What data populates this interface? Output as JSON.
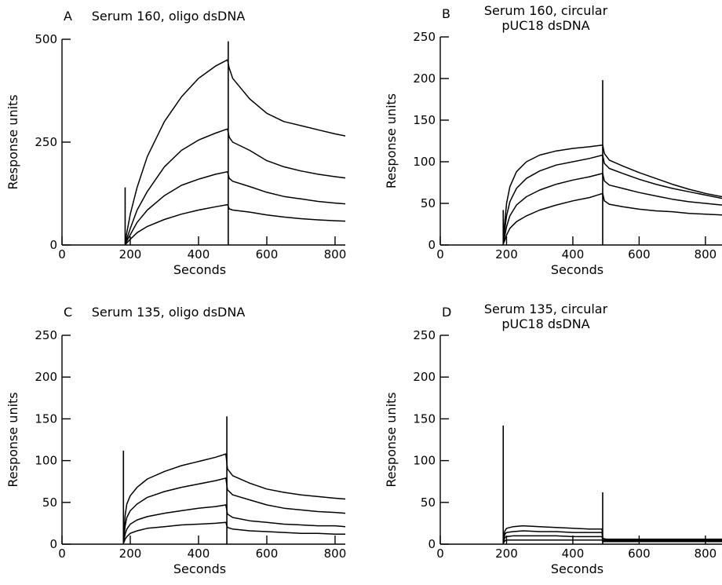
{
  "chart_data": [
    {
      "type": "line",
      "panel": "A",
      "title": [
        "Serum 160, oligo dsDNA"
      ],
      "xlabel": "Seconds",
      "ylabel": "Response units",
      "xlim": [
        0,
        830
      ],
      "ylim": [
        0,
        500
      ],
      "xticks": [
        0,
        200,
        400,
        600,
        800
      ],
      "yticks": [
        0,
        250,
        500
      ],
      "injection_start": 185,
      "injection_end": 487,
      "series": [
        {
          "x": [
            185,
            190,
            200,
            220,
            250,
            300,
            350,
            400,
            450,
            485,
            490,
            500,
            550,
            600,
            650,
            700,
            750,
            800,
            830
          ],
          "y": [
            5,
            30,
            75,
            140,
            215,
            300,
            360,
            405,
            435,
            450,
            430,
            405,
            355,
            320,
            300,
            290,
            280,
            270,
            265
          ]
        },
        {
          "x": [
            185,
            190,
            200,
            220,
            250,
            300,
            350,
            400,
            450,
            485,
            490,
            500,
            550,
            600,
            650,
            700,
            750,
            800,
            830
          ],
          "y": [
            3,
            15,
            40,
            85,
            130,
            190,
            230,
            255,
            272,
            282,
            262,
            250,
            230,
            205,
            190,
            180,
            172,
            166,
            163
          ]
        },
        {
          "x": [
            185,
            190,
            200,
            220,
            250,
            300,
            350,
            400,
            450,
            485,
            490,
            500,
            550,
            600,
            650,
            700,
            750,
            800,
            830
          ],
          "y": [
            2,
            10,
            25,
            55,
            85,
            120,
            145,
            160,
            172,
            178,
            162,
            155,
            142,
            128,
            118,
            112,
            106,
            102,
            100
          ]
        },
        {
          "x": [
            185,
            190,
            200,
            220,
            250,
            300,
            350,
            400,
            450,
            485,
            490,
            500,
            550,
            600,
            650,
            700,
            750,
            800,
            830
          ],
          "y": [
            1,
            5,
            14,
            30,
            45,
            62,
            75,
            85,
            93,
            98,
            88,
            85,
            80,
            73,
            68,
            64,
            61,
            59,
            58
          ]
        }
      ]
    },
    {
      "type": "line",
      "panel": "B",
      "title": [
        "Serum 160, circular",
        "pUC18 dsDNA"
      ],
      "xlabel": "Seconds",
      "ylabel": "Response units",
      "xlim": [
        0,
        850
      ],
      "ylim": [
        0,
        250
      ],
      "xticks": [
        0,
        200,
        400,
        600,
        800
      ],
      "yticks": [
        0,
        50,
        100,
        150,
        200,
        250
      ],
      "injection_start": 190,
      "injection_end": 490,
      "series": [
        {
          "x": [
            190,
            195,
            200,
            210,
            230,
            260,
            300,
            350,
            400,
            450,
            490,
            495,
            510,
            550,
            600,
            650,
            700,
            750,
            800,
            850
          ],
          "y": [
            5,
            30,
            50,
            70,
            88,
            100,
            108,
            113,
            116,
            118,
            120,
            110,
            102,
            95,
            87,
            80,
            73,
            67,
            62,
            58
          ]
        },
        {
          "x": [
            190,
            195,
            200,
            210,
            230,
            260,
            300,
            350,
            400,
            450,
            490,
            495,
            510,
            550,
            600,
            650,
            700,
            750,
            800,
            850
          ],
          "y": [
            3,
            20,
            35,
            52,
            68,
            80,
            89,
            96,
            100,
            104,
            108,
            98,
            92,
            86,
            79,
            73,
            68,
            64,
            60,
            56
          ]
        },
        {
          "x": [
            190,
            195,
            200,
            210,
            230,
            260,
            300,
            350,
            400,
            450,
            490,
            495,
            510,
            550,
            600,
            650,
            700,
            750,
            800,
            850
          ],
          "y": [
            2,
            12,
            22,
            35,
            48,
            58,
            66,
            73,
            78,
            82,
            86,
            77,
            72,
            68,
            63,
            59,
            55,
            52,
            50,
            48
          ]
        },
        {
          "x": [
            190,
            195,
            200,
            210,
            230,
            260,
            300,
            350,
            400,
            450,
            490,
            495,
            510,
            550,
            600,
            650,
            700,
            750,
            800,
            850
          ],
          "y": [
            1,
            6,
            12,
            20,
            28,
            35,
            42,
            48,
            53,
            57,
            62,
            53,
            49,
            46,
            43,
            41,
            40,
            38,
            37,
            36
          ]
        }
      ]
    },
    {
      "type": "line",
      "panel": "C",
      "title": [
        "Serum 135, oligo dsDNA"
      ],
      "xlabel": "Seconds",
      "ylabel": "Response units",
      "xlim": [
        0,
        830
      ],
      "ylim": [
        0,
        250
      ],
      "xticks": [
        0,
        200,
        400,
        600,
        800
      ],
      "yticks": [
        0,
        50,
        100,
        150,
        200,
        250
      ],
      "injection_start": 180,
      "injection_end": 483,
      "series": [
        {
          "x": [
            180,
            185,
            190,
            200,
            220,
            250,
            300,
            350,
            400,
            450,
            480,
            485,
            500,
            550,
            600,
            650,
            700,
            750,
            800,
            830
          ],
          "y": [
            5,
            35,
            48,
            58,
            68,
            78,
            87,
            94,
            99,
            104,
            108,
            90,
            82,
            73,
            66,
            62,
            59,
            57,
            55,
            54
          ]
        },
        {
          "x": [
            180,
            185,
            190,
            200,
            220,
            250,
            300,
            350,
            400,
            450,
            480,
            485,
            500,
            550,
            600,
            650,
            700,
            750,
            800,
            830
          ],
          "y": [
            3,
            22,
            32,
            40,
            48,
            56,
            63,
            68,
            72,
            76,
            79,
            65,
            59,
            53,
            47,
            43,
            41,
            39,
            38,
            37
          ]
        },
        {
          "x": [
            180,
            185,
            190,
            200,
            220,
            250,
            300,
            350,
            400,
            450,
            480,
            485,
            500,
            550,
            600,
            650,
            700,
            750,
            800,
            830
          ],
          "y": [
            2,
            12,
            18,
            24,
            29,
            33,
            37,
            40,
            43,
            45,
            47,
            36,
            32,
            28,
            26,
            24,
            23,
            22,
            22,
            21
          ]
        },
        {
          "x": [
            180,
            185,
            190,
            200,
            220,
            250,
            300,
            350,
            400,
            450,
            480,
            485,
            500,
            550,
            600,
            650,
            700,
            750,
            800,
            830
          ],
          "y": [
            1,
            6,
            9,
            13,
            16,
            19,
            21,
            23,
            24,
            25,
            26,
            20,
            18,
            16,
            15,
            14,
            13,
            13,
            12,
            12
          ]
        }
      ]
    },
    {
      "type": "line",
      "panel": "D",
      "title": [
        "Serum 135, circular",
        "pUC18 dsDNA"
      ],
      "xlabel": "Seconds",
      "ylabel": "Response units",
      "xlim": [
        0,
        850
      ],
      "ylim": [
        0,
        250
      ],
      "xticks": [
        0,
        200,
        400,
        600,
        800
      ],
      "yticks": [
        0,
        50,
        100,
        150,
        200,
        250
      ],
      "injection_start": 190,
      "injection_end": 490,
      "series": [
        {
          "x": [
            190,
            195,
            200,
            220,
            250,
            300,
            350,
            400,
            450,
            488,
            490,
            500,
            550,
            600,
            700,
            800,
            850
          ],
          "y": [
            5,
            16,
            19,
            21,
            22,
            21,
            20,
            19,
            18,
            18,
            7,
            6,
            6,
            6,
            6,
            6,
            6
          ]
        },
        {
          "x": [
            190,
            195,
            200,
            220,
            250,
            300,
            350,
            400,
            450,
            488,
            490,
            500,
            550,
            600,
            700,
            800,
            850
          ],
          "y": [
            3,
            12,
            14,
            15,
            16,
            15,
            15,
            14,
            14,
            14,
            6,
            5,
            5,
            5,
            5,
            5,
            5
          ]
        },
        {
          "x": [
            190,
            195,
            200,
            220,
            250,
            300,
            350,
            400,
            450,
            488,
            490,
            500,
            550,
            600,
            700,
            800,
            850
          ],
          "y": [
            2,
            8,
            9,
            10,
            10,
            10,
            10,
            9,
            9,
            9,
            4,
            4,
            4,
            4,
            4,
            4,
            4
          ]
        },
        {
          "x": [
            190,
            195,
            200,
            220,
            250,
            300,
            350,
            400,
            450,
            488,
            490,
            500,
            550,
            600,
            700,
            800,
            850
          ],
          "y": [
            1,
            4,
            5,
            5,
            5,
            5,
            5,
            5,
            5,
            5,
            3,
            3,
            3,
            3,
            3,
            3,
            3
          ]
        }
      ]
    }
  ]
}
